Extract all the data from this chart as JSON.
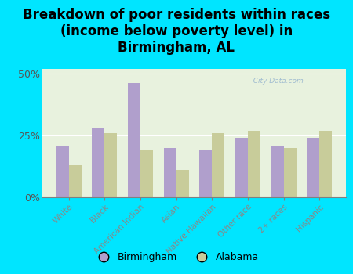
{
  "title": "Breakdown of poor residents within races\n(income below poverty level) in\nBirmingham, AL",
  "categories": [
    "White",
    "Black",
    "American Indian",
    "Asian",
    "Native Hawaiian",
    "Other race",
    "2+ races",
    "Hispanic"
  ],
  "birmingham": [
    21,
    28,
    46,
    20,
    19,
    24,
    21,
    24
  ],
  "alabama": [
    13,
    26,
    19,
    11,
    26,
    27,
    20,
    27
  ],
  "birmingham_color": "#b09fcc",
  "alabama_color": "#c8cc9a",
  "background_outer": "#00e5ff",
  "background_plot": "#e8f2de",
  "ylim": [
    0,
    52
  ],
  "yticks": [
    0,
    25,
    50
  ],
  "ytick_labels": [
    "0%",
    "25%",
    "50%"
  ],
  "watermark": "  City-Data.com",
  "legend_birmingham": "Birmingham",
  "legend_alabama": "Alabama",
  "title_fontsize": 12,
  "tick_label_color": "#888888",
  "ytick_color": "#555555"
}
